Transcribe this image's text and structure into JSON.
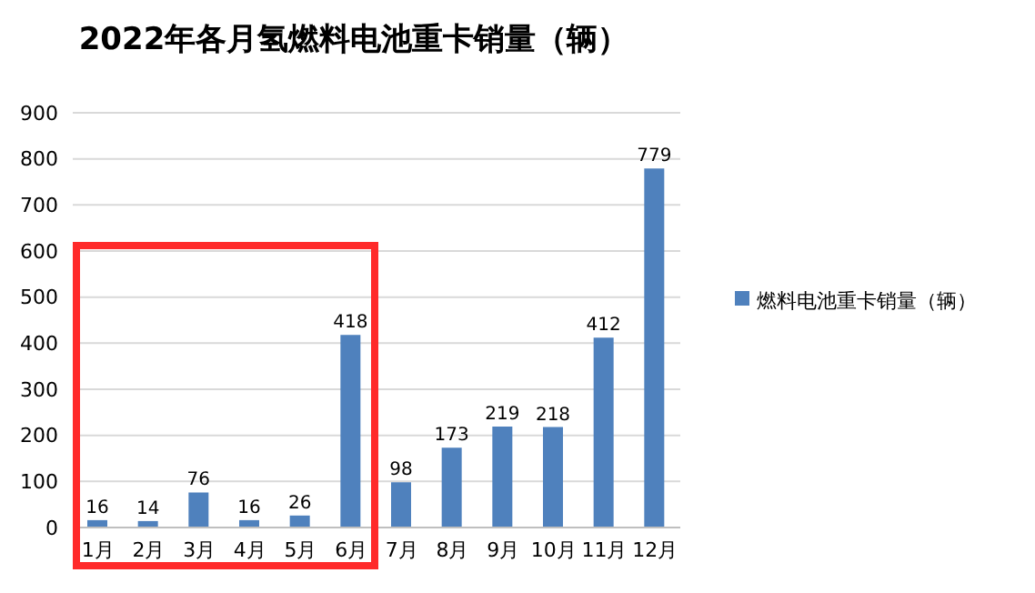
{
  "chart_data": {
    "type": "bar",
    "title": "2022年各月氢燃料电池重卡销量（辆）",
    "categories": [
      "1月",
      "2月",
      "3月",
      "4月",
      "5月",
      "6月",
      "7月",
      "8月",
      "9月",
      "10月",
      "11月",
      "12月"
    ],
    "series": [
      {
        "name": "燃料电池重卡销量（辆）",
        "color": "#4f81bd",
        "values": [
          16,
          14,
          76,
          16,
          26,
          418,
          98,
          173,
          219,
          218,
          412,
          779
        ]
      }
    ],
    "ylim": [
      0,
      900
    ],
    "yticks": [
      0,
      100,
      200,
      300,
      400,
      500,
      600,
      700,
      800,
      900
    ],
    "grid": "y",
    "legend": "right",
    "data_labels": true
  }
}
